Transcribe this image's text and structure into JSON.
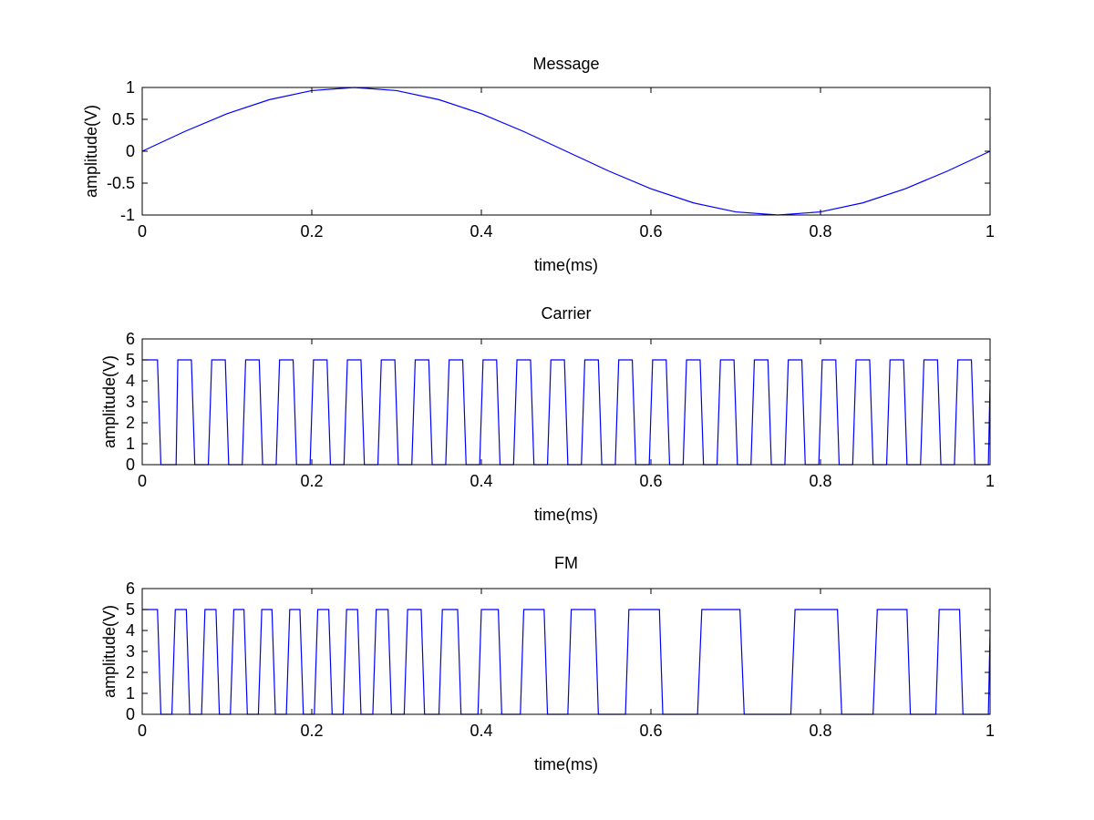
{
  "chart_data": [
    {
      "type": "line",
      "title": "Message",
      "xlabel": "time(ms)",
      "ylabel": "amplitude(V)",
      "xlim": [
        0,
        1
      ],
      "ylim": [
        -1,
        1
      ],
      "xticks": [
        0,
        0.2,
        0.4,
        0.6,
        0.8,
        1
      ],
      "xtick_labels": [
        "0",
        "0.2",
        "0.4",
        "0.6",
        "0.8",
        "1"
      ],
      "yticks": [
        -1,
        -0.5,
        0,
        0.5,
        1
      ],
      "ytick_labels": [
        "-1",
        "-0.5",
        "0",
        "0.5",
        "1"
      ],
      "grid": false,
      "series": [
        {
          "color": "#0000ff",
          "x": [
            0,
            0.05,
            0.1,
            0.15,
            0.2,
            0.25,
            0.3,
            0.35,
            0.4,
            0.45,
            0.5,
            0.55,
            0.6,
            0.65,
            0.7,
            0.75,
            0.8,
            0.85,
            0.9,
            0.95,
            1
          ],
          "y": [
            0,
            0.309,
            0.588,
            0.809,
            0.951,
            1,
            0.951,
            0.809,
            0.588,
            0.309,
            0,
            -0.309,
            -0.588,
            -0.809,
            -0.951,
            -1,
            -0.951,
            -0.809,
            -0.588,
            -0.309,
            0
          ]
        }
      ]
    },
    {
      "type": "line",
      "title": "Carrier",
      "xlabel": "time(ms)",
      "ylabel": "amplitude(V)",
      "xlim": [
        0,
        1
      ],
      "ylim": [
        0,
        6
      ],
      "xticks": [
        0,
        0.2,
        0.4,
        0.6,
        0.8,
        1
      ],
      "xtick_labels": [
        "0",
        "0.2",
        "0.4",
        "0.6",
        "0.8",
        "1"
      ],
      "yticks": [
        0,
        1,
        2,
        3,
        4,
        5,
        6
      ],
      "ytick_labels": [
        "0",
        "1",
        "2",
        "3",
        "4",
        "5",
        "6"
      ],
      "grid": false,
      "series": [
        {
          "color": "#0000ff",
          "x": [
            0,
            0.018,
            0.022,
            0.04,
            0.042,
            0.058,
            0.062,
            0.078,
            0.082,
            0.098,
            0.102,
            0.118,
            0.122,
            0.138,
            0.142,
            0.158,
            0.162,
            0.178,
            0.182,
            0.198,
            0.202,
            0.218,
            0.222,
            0.238,
            0.242,
            0.258,
            0.262,
            0.278,
            0.282,
            0.298,
            0.302,
            0.318,
            0.322,
            0.338,
            0.342,
            0.358,
            0.362,
            0.378,
            0.382,
            0.398,
            0.402,
            0.418,
            0.422,
            0.438,
            0.442,
            0.458,
            0.462,
            0.478,
            0.482,
            0.498,
            0.502,
            0.518,
            0.522,
            0.538,
            0.542,
            0.558,
            0.562,
            0.578,
            0.582,
            0.598,
            0.602,
            0.618,
            0.622,
            0.638,
            0.642,
            0.658,
            0.662,
            0.678,
            0.682,
            0.698,
            0.702,
            0.718,
            0.722,
            0.738,
            0.742,
            0.758,
            0.762,
            0.778,
            0.782,
            0.798,
            0.802,
            0.818,
            0.822,
            0.838,
            0.842,
            0.858,
            0.862,
            0.878,
            0.882,
            0.898,
            0.902,
            0.918,
            0.922,
            0.938,
            0.942,
            0.958,
            0.962,
            0.978,
            0.982,
            0.998,
            1
          ],
          "y": [
            5,
            5,
            0,
            0,
            5,
            5,
            0,
            0,
            5,
            5,
            0,
            0,
            5,
            5,
            0,
            0,
            5,
            5,
            0,
            0,
            5,
            5,
            0,
            0,
            5,
            5,
            0,
            0,
            5,
            5,
            0,
            0,
            5,
            5,
            0,
            0,
            5,
            5,
            0,
            0,
            5,
            5,
            0,
            0,
            5,
            5,
            0,
            0,
            5,
            5,
            0,
            0,
            5,
            5,
            0,
            0,
            5,
            5,
            0,
            0,
            5,
            5,
            0,
            0,
            5,
            5,
            0,
            0,
            5,
            5,
            0,
            0,
            5,
            5,
            0,
            0,
            5,
            5,
            0,
            0,
            5,
            5,
            0,
            0,
            5,
            5,
            0,
            0,
            5,
            5,
            0,
            0,
            5,
            5,
            0,
            0,
            5,
            5,
            0,
            0,
            4
          ]
        }
      ]
    },
    {
      "type": "line",
      "title": "FM",
      "xlabel": "time(ms)",
      "ylabel": "amplitude(V)",
      "xlim": [
        0,
        1
      ],
      "ylim": [
        0,
        6
      ],
      "xticks": [
        0,
        0.2,
        0.4,
        0.6,
        0.8,
        1
      ],
      "xtick_labels": [
        "0",
        "0.2",
        "0.4",
        "0.6",
        "0.8",
        "1"
      ],
      "yticks": [
        0,
        1,
        2,
        3,
        4,
        5,
        6
      ],
      "ytick_labels": [
        "0",
        "1",
        "2",
        "3",
        "4",
        "5",
        "6"
      ],
      "grid": false,
      "series": [
        {
          "color": "#0000ff",
          "x": [
            0,
            0.018,
            0.022,
            0.035,
            0.039,
            0.052,
            0.056,
            0.07,
            0.074,
            0.087,
            0.091,
            0.104,
            0.108,
            0.12,
            0.124,
            0.137,
            0.141,
            0.153,
            0.157,
            0.17,
            0.174,
            0.186,
            0.19,
            0.203,
            0.207,
            0.22,
            0.224,
            0.237,
            0.241,
            0.254,
            0.258,
            0.272,
            0.276,
            0.29,
            0.294,
            0.309,
            0.313,
            0.329,
            0.333,
            0.35,
            0.354,
            0.372,
            0.376,
            0.396,
            0.4,
            0.42,
            0.424,
            0.446,
            0.45,
            0.474,
            0.478,
            0.502,
            0.506,
            0.534,
            0.538,
            0.57,
            0.574,
            0.61,
            0.614,
            0.655,
            0.66,
            0.705,
            0.71,
            0.765,
            0.77,
            0.82,
            0.825,
            0.862,
            0.867,
            0.902,
            0.906,
            0.936,
            0.94,
            0.964,
            0.968,
            0.998,
            1
          ],
          "y": [
            5,
            5,
            0,
            0,
            5,
            5,
            0,
            0,
            5,
            5,
            0,
            0,
            5,
            5,
            0,
            0,
            5,
            5,
            0,
            0,
            5,
            5,
            0,
            0,
            5,
            5,
            0,
            0,
            5,
            5,
            0,
            0,
            5,
            5,
            0,
            0,
            5,
            5,
            0,
            0,
            5,
            5,
            0,
            0,
            5,
            5,
            0,
            0,
            5,
            5,
            0,
            0,
            5,
            5,
            0,
            0,
            5,
            5,
            0,
            0,
            5,
            5,
            0,
            0,
            5,
            5,
            0,
            0,
            5,
            5,
            0,
            0,
            5,
            5,
            0,
            0,
            4
          ]
        }
      ]
    }
  ]
}
